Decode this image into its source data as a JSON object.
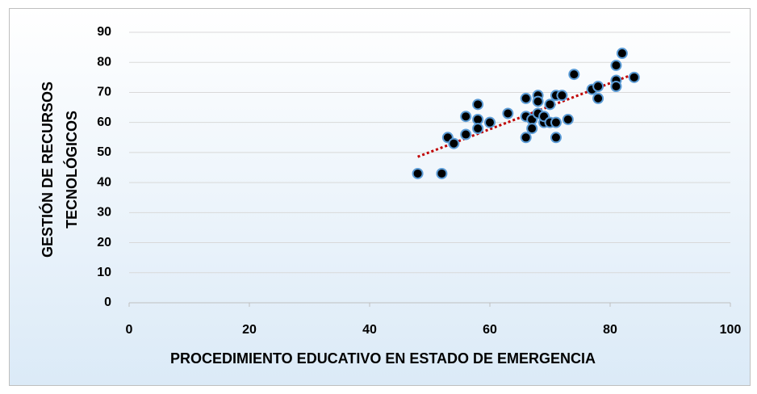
{
  "chart_data": {
    "type": "scatter",
    "ylabel": [
      "GESTIÓN DE RECURSOS",
      "TECNOLÓGICOS"
    ],
    "xlabel": "PROCEDIMIENTO EDUCATIVO EN ESTADO DE EMERGENCIA",
    "x": [
      48,
      52,
      53,
      54,
      56,
      56,
      58,
      58,
      58,
      60,
      63,
      66,
      66,
      66,
      67,
      67,
      68,
      68,
      68,
      69,
      69,
      70,
      70,
      71,
      71,
      71,
      72,
      73,
      74,
      77,
      78,
      78,
      81,
      81,
      81,
      82,
      84
    ],
    "values": [
      43,
      43,
      55,
      53,
      56,
      62,
      66,
      61,
      58,
      60,
      63,
      68,
      62,
      55,
      61,
      58,
      69,
      67,
      63,
      60,
      62,
      66,
      60,
      69,
      60,
      55,
      69,
      61,
      76,
      71,
      72,
      68,
      79,
      74,
      72,
      83,
      75
    ],
    "color": "#000000",
    "edge_color": "#5b9bd5",
    "trendline": true,
    "trendline_color": "#c00000",
    "xlim": [
      0,
      100
    ],
    "xticks": [
      0,
      20,
      40,
      60,
      80,
      100
    ],
    "ylim": [
      0,
      90
    ],
    "yticks": [
      0,
      10,
      20,
      30,
      40,
      50,
      60,
      70,
      80,
      90
    ],
    "grid": true
  }
}
